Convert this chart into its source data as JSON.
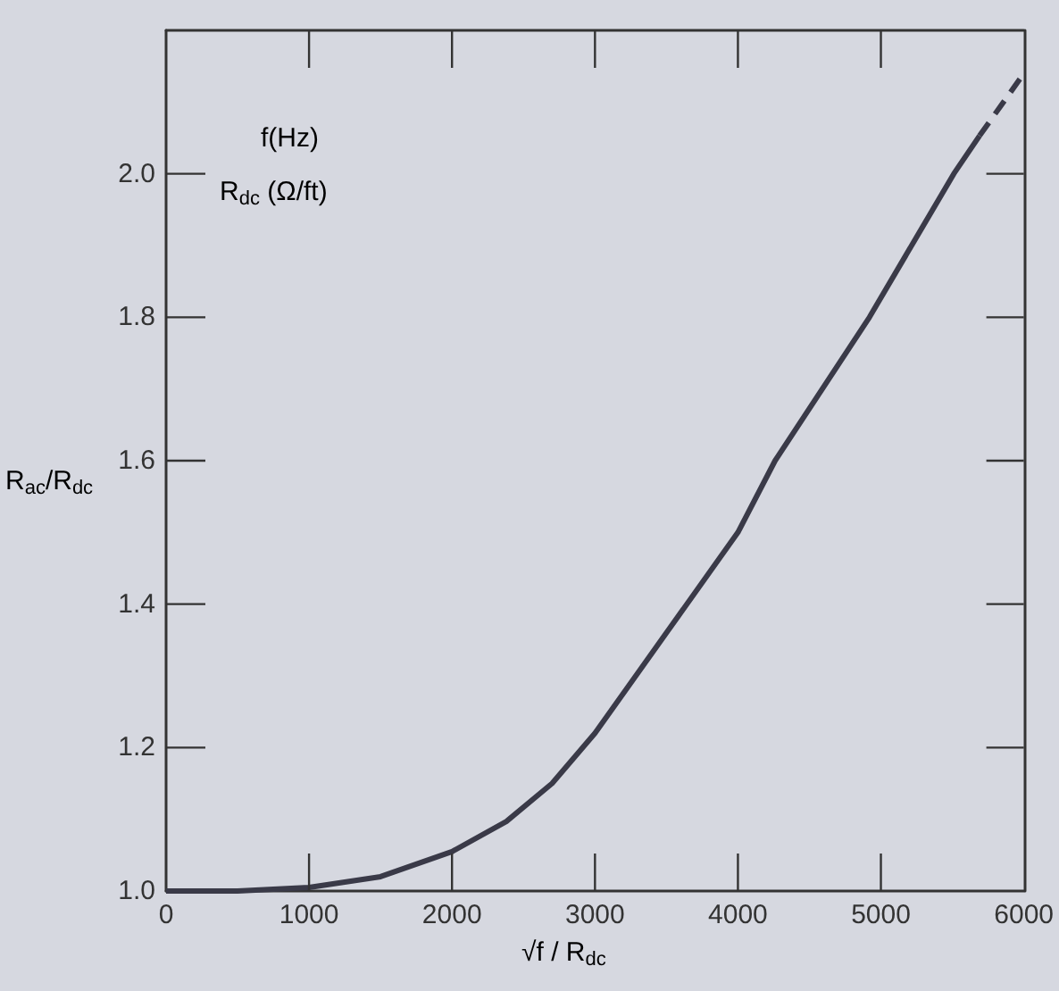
{
  "chart_data": {
    "type": "line",
    "xlabel": "√f / R$_{dc}$",
    "ylabel": "R$_{ac}$/R$_{dc}$",
    "annotations": [
      "f(Hz)",
      "R$_{dc}$ (Ω/ft)"
    ],
    "series": [
      {
        "color": "#3a3a48",
        "line_style": "solid",
        "x": [
          0,
          500,
          1000,
          1500,
          2000,
          2380,
          2700,
          3000,
          3500,
          4000,
          4260,
          4920,
          5510,
          5690
        ],
        "values": [
          1.0,
          1.0,
          1.005,
          1.02,
          1.055,
          1.097,
          1.15,
          1.22,
          1.36,
          1.5,
          1.6,
          1.8,
          2.0,
          2.053
        ]
      },
      {
        "color": "#3a3a48",
        "line_style": "dashed",
        "x": [
          5690,
          6000
        ],
        "values": [
          2.053,
          2.14
        ]
      }
    ],
    "xlim": [
      0,
      6000
    ],
    "xticks": [
      0,
      1000,
      2000,
      3000,
      4000,
      5000,
      6000
    ],
    "ylim": [
      1.0,
      2.2
    ],
    "yticks": [
      {
        "value": 1.0,
        "label": "1.0"
      },
      1.2,
      1.4,
      1.6,
      1.8,
      {
        "value": 2.0,
        "label": "2.0"
      }
    ],
    "grid": false,
    "marker": "none"
  }
}
